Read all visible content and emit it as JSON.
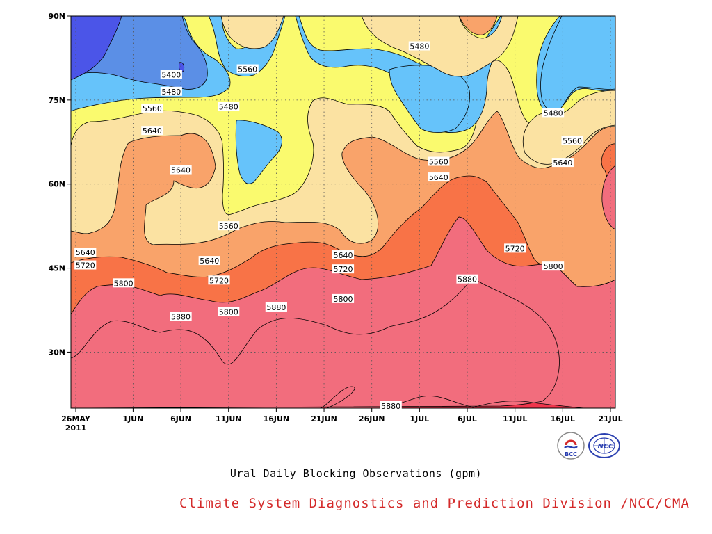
{
  "chart_data": {
    "type": "heatmap",
    "subtype": "filled-contour",
    "title": "Ural Daily Blocking Observations (gpm)",
    "x_ticks": [
      "26MAY",
      "1JUN",
      "6JUN",
      "11JUN",
      "16JUN",
      "21JUN",
      "26JUN",
      "1JUL",
      "6JUL",
      "11JUL",
      "16JUL",
      "21JUL"
    ],
    "x_year_label": "2011",
    "x_range": [
      "2011-05-26",
      "2011-07-21"
    ],
    "y_ticks": [
      "90N",
      "75N",
      "60N",
      "45N",
      "30N"
    ],
    "y_range": [
      20,
      90
    ],
    "grid": "dotted",
    "contour_levels": [
      5400,
      5480,
      5560,
      5640,
      5720,
      5800,
      5880
    ],
    "fill_colors": {
      "below_5400": "#4b55e8",
      "5400_5480": "#5b8fe6",
      "5480_5560": "#66c3fa",
      "5560_5640": "#fafa6e",
      "5640_5720": "#fbe2a2",
      "5720_5800": "#f9a36a",
      "5800_5880": "#f87347",
      "5880_5960": "#f26d7d",
      "above_5960": "#f0354c"
    },
    "contour_labels": [
      {
        "value": "5400",
        "date": "2011-06-05",
        "lat": 79.5
      },
      {
        "value": "5480",
        "date": "2011-06-05",
        "lat": 76.5
      },
      {
        "value": "5560",
        "date": "2011-06-03",
        "lat": 73.5
      },
      {
        "value": "5640",
        "date": "2011-06-03",
        "lat": 69.5
      },
      {
        "value": "5480",
        "date": "2011-06-11",
        "lat": 73.8
      },
      {
        "value": "5560",
        "date": "2011-06-13",
        "lat": 80.5
      },
      {
        "value": "5640",
        "date": "2011-06-06",
        "lat": 62.5
      },
      {
        "value": "5560",
        "date": "2011-06-11",
        "lat": 52.5
      },
      {
        "value": "5640",
        "date": "2011-05-27",
        "lat": 47.8
      },
      {
        "value": "5720",
        "date": "2011-05-27",
        "lat": 45.5
      },
      {
        "value": "5800",
        "date": "2011-05-31",
        "lat": 42.3
      },
      {
        "value": "5640",
        "date": "2011-06-09",
        "lat": 46.3
      },
      {
        "value": "5720",
        "date": "2011-06-10",
        "lat": 42.8
      },
      {
        "value": "5800",
        "date": "2011-06-11",
        "lat": 37.2
      },
      {
        "value": "5880",
        "date": "2011-06-06",
        "lat": 36.3
      },
      {
        "value": "5880",
        "date": "2011-06-16",
        "lat": 38.0
      },
      {
        "value": "5640",
        "date": "2011-06-23",
        "lat": 47.3
      },
      {
        "value": "5720",
        "date": "2011-06-23",
        "lat": 44.8
      },
      {
        "value": "5800",
        "date": "2011-06-23",
        "lat": 39.5
      },
      {
        "value": "5880",
        "date": "2011-06-28",
        "lat": 20.4
      },
      {
        "value": "5480",
        "date": "2011-07-01",
        "lat": 84.6
      },
      {
        "value": "5560",
        "date": "2011-07-03",
        "lat": 64.0
      },
      {
        "value": "5640",
        "date": "2011-07-03",
        "lat": 61.2
      },
      {
        "value": "5880",
        "date": "2011-07-06",
        "lat": 43.0
      },
      {
        "value": "5720",
        "date": "2011-07-11",
        "lat": 48.5
      },
      {
        "value": "5800",
        "date": "2011-07-15",
        "lat": 45.3
      },
      {
        "value": "5480",
        "date": "2011-07-15",
        "lat": 72.7
      },
      {
        "value": "5560",
        "date": "2011-07-17",
        "lat": 67.7
      },
      {
        "value": "5640",
        "date": "2011-07-16",
        "lat": 63.8
      }
    ]
  },
  "footer": {
    "caption": "Ural Daily Blocking Observations (gpm)",
    "credit": "Climate System Diagnostics and Prediction Division /NCC/CMA"
  },
  "logos": [
    {
      "name": "bcc-logo",
      "text": "BCC"
    },
    {
      "name": "ncc-logo",
      "text": "NCC"
    }
  ]
}
